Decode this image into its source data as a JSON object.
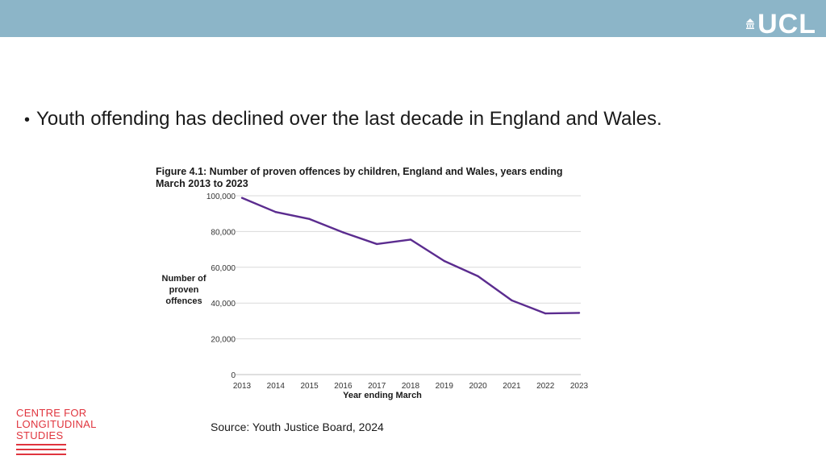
{
  "header": {
    "logo_text": "UCL"
  },
  "bullet": {
    "text": "Youth offending has declined over the last decade in England and Wales."
  },
  "chart_data": {
    "type": "line",
    "title": "Figure 4.1: Number of proven offences by children, England and Wales, years ending March 2013 to 2023",
    "title_lines": [
      "Figure 4.1: Number of proven offences by children, England and Wales, years ending",
      "March 2013 to 2023"
    ],
    "xlabel": "Year ending March",
    "ylabel": "Number of proven offences",
    "ylabel_lines": [
      "Number of",
      "proven",
      "offences"
    ],
    "ylim": [
      0,
      100000
    ],
    "yticks": [
      0,
      20000,
      40000,
      60000,
      80000,
      100000
    ],
    "ytick_labels": [
      "0",
      "20,000",
      "40,000",
      "60,000",
      "80,000",
      "100,000"
    ],
    "categories": [
      "2013",
      "2014",
      "2015",
      "2016",
      "2017",
      "2018",
      "2019",
      "2020",
      "2021",
      "2022",
      "2023"
    ],
    "series": [
      {
        "values": [
          98800,
          90900,
          87000,
          79500,
          73000,
          75500,
          63500,
          55000,
          41500,
          34200,
          34500
        ],
        "color": "#5b2c8f"
      }
    ],
    "grid": true
  },
  "source": {
    "text": "Source: Youth Justice Board, 2024"
  },
  "footer_logo": {
    "lines": [
      "CENTRE FOR",
      "LONGITUDINAL",
      "STUDIES"
    ],
    "color": "#e0353e"
  }
}
